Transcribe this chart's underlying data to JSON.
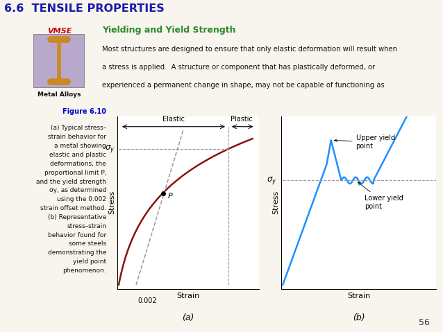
{
  "title_main": "6.6  TENSILE PROPERTIES",
  "subtitle": "Yielding and Yield Strength",
  "vmse_text": "VMSE",
  "metal_alloys_text": "Metal Alloys",
  "body_text_1": "Most structures are designed to ensure that only elastic deformation will result when",
  "body_text_2": "a stress is applied.  A structure or component that has plastically deformed, or",
  "body_text_3": "experienced a permanent change in shape, may not be capable of functioning as",
  "figure_caption_title": "Figure 6.10",
  "figure_caption": "(a) Typical stress–\nstrain behavior for\na metal showing\nelastic and plastic\ndeformations, the\nproportional limit P,\nand the yield strength\nσy, as determined\nusing the 0.002\nstrain offset method.\n(b) Representative\nstress–strain\nbehavior found for\nsome steels\ndemonstrating the\nyield point\nphenomenon.",
  "page_number": "56",
  "bg_color": "#f8f4ee",
  "title_color": "#1a1aaa",
  "subtitle_color": "#2a8a2a",
  "vmse_color": "#cc0000",
  "caption_title_color": "#0000cc",
  "curve_color_a": "#8b1010",
  "curve_color_b": "#1e90ff",
  "dashed_color": "#999999",
  "subplot_a_xlabel": "Strain",
  "subplot_a_ylabel": "Stress",
  "subplot_b_xlabel": "Strain",
  "subplot_b_ylabel": "Stress",
  "offset_label": "←  0.002",
  "elastic_label": "Elastic",
  "plastic_label": "Plastic",
  "sigma_y_label": "σy",
  "point_P_label": "P",
  "upper_yield_label": "Upper yield\npoint",
  "lower_yield_label": "Lower yield\npoint",
  "label_a": "(a)",
  "label_b": "(b)"
}
